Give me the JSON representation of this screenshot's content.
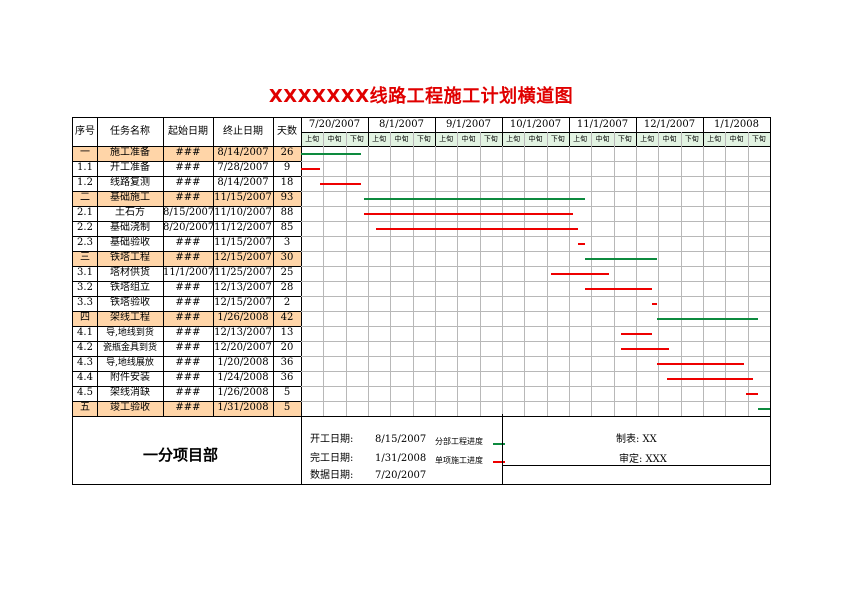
{
  "title": "XXXXXXX线路工程施工计划横道图",
  "header": {
    "seq": "序号",
    "task": "任务名称",
    "start": "起始日期",
    "end": "终止日期",
    "days": "天数",
    "months": [
      "7/20/2007",
      "8/1/2007",
      "9/1/2007",
      "10/1/2007",
      "11/1/2007",
      "12/1/2007",
      "1/1/2008"
    ],
    "periods": [
      "上旬",
      "中旬",
      "下旬"
    ]
  },
  "rows": [
    {
      "seq": "一",
      "name": "施工准备",
      "start": "###",
      "end": "8/14/2007",
      "days": "26",
      "group": true
    },
    {
      "seq": "1.1",
      "name": "开工准备",
      "start": "###",
      "end": "7/28/2007",
      "days": "9",
      "group": false
    },
    {
      "seq": "1.2",
      "name": "线路复测",
      "start": "###",
      "end": "8/14/2007",
      "days": "18",
      "group": false
    },
    {
      "seq": "二",
      "name": "基础施工",
      "start": "###",
      "end": "11/15/2007",
      "days": "93",
      "group": true
    },
    {
      "seq": "2.1",
      "name": "土石方",
      "start": "8/15/2007",
      "end": "11/10/2007",
      "days": "88",
      "group": false
    },
    {
      "seq": "2.2",
      "name": "基础浇制",
      "start": "8/20/2007",
      "end": "11/12/2007",
      "days": "85",
      "group": false
    },
    {
      "seq": "2.3",
      "name": "基础验收",
      "start": "###",
      "end": "11/15/2007",
      "days": "3",
      "group": false
    },
    {
      "seq": "三",
      "name": "铁塔工程",
      "start": "###",
      "end": "12/15/2007",
      "days": "30",
      "group": true
    },
    {
      "seq": "3.1",
      "name": "塔材供货",
      "start": "11/1/2007",
      "end": "11/25/2007",
      "days": "25",
      "group": false
    },
    {
      "seq": "3.2",
      "name": "铁塔组立",
      "start": "###",
      "end": "12/13/2007",
      "days": "28",
      "group": false
    },
    {
      "seq": "3.3",
      "name": "铁塔验收",
      "start": "###",
      "end": "12/15/2007",
      "days": "2",
      "group": false
    },
    {
      "seq": "四",
      "name": "架线工程",
      "start": "###",
      "end": "1/26/2008",
      "days": "42",
      "group": true
    },
    {
      "seq": "4.1",
      "name": "导,地线到货",
      "start": "###",
      "end": "12/13/2007",
      "days": "13",
      "group": false
    },
    {
      "seq": "4.2",
      "name": "瓷瓶金具到货",
      "start": "###",
      "end": "12/20/2007",
      "days": "20",
      "group": false
    },
    {
      "seq": "4.3",
      "name": "导,地线展放",
      "start": "###",
      "end": "1/20/2008",
      "days": "36",
      "group": false
    },
    {
      "seq": "4.4",
      "name": "附件安装",
      "start": "###",
      "end": "1/24/2008",
      "days": "36",
      "group": false
    },
    {
      "seq": "4.5",
      "name": "架线消缺",
      "start": "###",
      "end": "1/26/2008",
      "days": "5",
      "group": false
    },
    {
      "seq": "五",
      "name": "竣工验收",
      "start": "###",
      "end": "1/31/2008",
      "days": "5",
      "group": true
    }
  ],
  "gantt": {
    "axis_start": "7/20/2007",
    "axis_end": "1/31/2008",
    "colors": {
      "group": "#0d8a3e",
      "task": "#ee0000",
      "header_fill": "#ffd5a8",
      "period_fill": "#e2f3e2",
      "month_text": "#000000"
    },
    "bars": [
      {
        "start": "7/20/2007",
        "end": "8/14/2007"
      },
      {
        "start": "7/20/2007",
        "end": "7/28/2007"
      },
      {
        "start": "7/28/2007",
        "end": "8/14/2007"
      },
      {
        "start": "8/15/2007",
        "end": "11/15/2007"
      },
      {
        "start": "8/15/2007",
        "end": "11/10/2007"
      },
      {
        "start": "8/20/2007",
        "end": "11/12/2007"
      },
      {
        "start": "11/12/2007",
        "end": "11/15/2007"
      },
      {
        "start": "11/15/2007",
        "end": "12/15/2007"
      },
      {
        "start": "11/1/2007",
        "end": "11/25/2007"
      },
      {
        "start": "11/15/2007",
        "end": "12/13/2007"
      },
      {
        "start": "12/13/2007",
        "end": "12/15/2007"
      },
      {
        "start": "12/15/2007",
        "end": "1/26/2008"
      },
      {
        "start": "11/30/2007",
        "end": "12/13/2007"
      },
      {
        "start": "11/30/2007",
        "end": "12/20/2007"
      },
      {
        "start": "12/15/2007",
        "end": "1/20/2008"
      },
      {
        "start": "12/19/2007",
        "end": "1/24/2008"
      },
      {
        "start": "1/21/2008",
        "end": "1/26/2008"
      },
      {
        "start": "1/26/2008",
        "end": "1/31/2008"
      }
    ]
  },
  "footer": {
    "org": "一分项目部",
    "start_label": "开工日期:",
    "start_value": "8/15/2007",
    "end_label": "完工日期:",
    "end_value": "1/31/2008",
    "data_label": "数据日期:",
    "data_value": "7/20/2007",
    "legend_group": "分部工程进度",
    "legend_task": "单项施工进度",
    "made_by": "制表: XX",
    "reviewed_by": "审定: XXX"
  }
}
